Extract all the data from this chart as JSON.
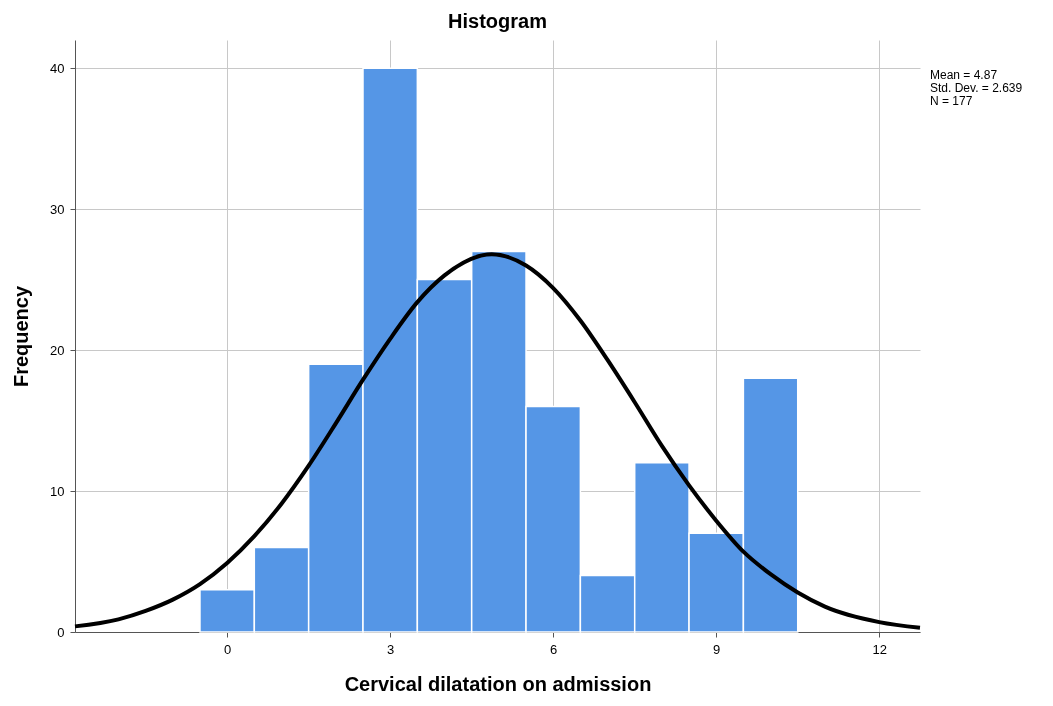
{
  "chart_data": {
    "type": "histogram",
    "title": "Histogram",
    "xlabel": "Cervical dilatation on admission",
    "ylabel": "Frequency",
    "bins": [
      -0.5,
      0.5,
      1.5,
      2.5,
      3.5,
      4.5,
      5.5,
      6.5,
      7.5,
      8.5,
      9.5,
      10.5
    ],
    "values": [
      3,
      6,
      19,
      40,
      25,
      27,
      16,
      4,
      12,
      7,
      18
    ],
    "color": "#5596e6",
    "series": [
      {
        "type": "line",
        "color": "#000000",
        "x": [
          -2.8,
          -2,
          -1.5,
          -1,
          -0.5,
          0,
          0.5,
          1,
          1.5,
          2,
          2.5,
          3,
          3.5,
          4,
          4.87,
          5.5,
          6,
          6.5,
          7,
          7.5,
          8,
          8.5,
          9,
          9.5,
          10,
          10.5,
          11,
          12,
          12.75
        ],
        "values": [
          0.4,
          0.9,
          1.5,
          2.3,
          3.4,
          4.9,
          6.8,
          9.1,
          11.8,
          14.8,
          17.9,
          20.8,
          23.4,
          25.3,
          26.8,
          26.0,
          24.4,
          22.1,
          19.3,
          16.3,
          13.2,
          10.4,
          7.9,
          5.7,
          4.1,
          2.8,
          1.8,
          0.7,
          0.3
        ]
      }
    ],
    "xlim": [
      -2.8,
      12.75
    ],
    "xticks": [
      0,
      3,
      6,
      9,
      12
    ],
    "ylim": [
      0,
      42
    ],
    "yticks": [
      0,
      10,
      20,
      30,
      40
    ],
    "grid": true,
    "annotations": [
      "Mean = 4.87",
      "Std. Dev. = 2.639",
      "N = 177"
    ]
  }
}
